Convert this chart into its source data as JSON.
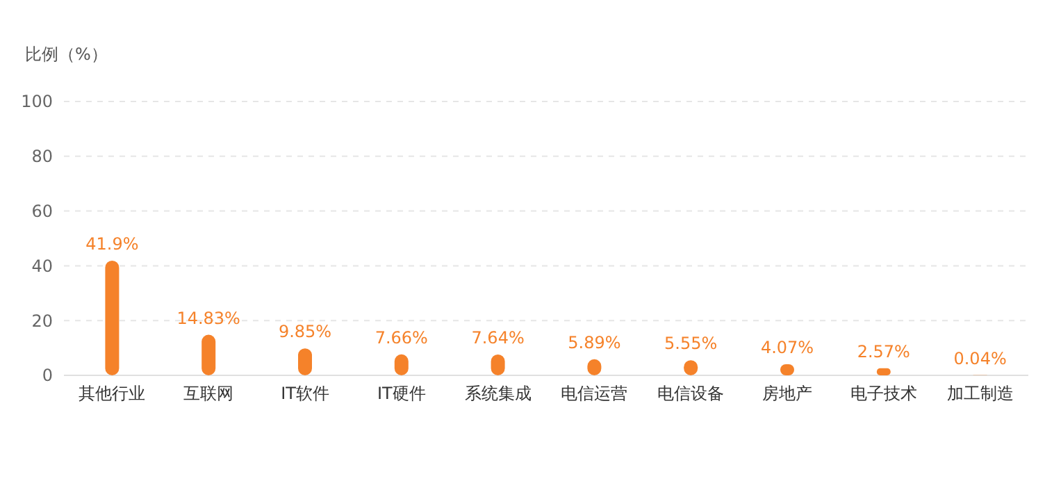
{
  "chart_data": {
    "type": "bar",
    "ylabel": "比例（%）",
    "categories": [
      "其他行业",
      "互联网",
      "IT软件",
      "IT硬件",
      "系统集成",
      "电信运营",
      "电信设备",
      "房地产",
      "电子技术",
      "加工制造"
    ],
    "values": [
      41.9,
      14.83,
      9.85,
      7.66,
      7.64,
      5.89,
      5.55,
      4.07,
      2.57,
      0.04
    ],
    "value_labels": [
      "41.9%",
      "14.83%",
      "9.85%",
      "7.66%",
      "7.64%",
      "5.89%",
      "5.55%",
      "4.07%",
      "2.57%",
      "0.04%"
    ],
    "color": "#f5822a",
    "ylim": [
      0,
      100
    ],
    "yticks": [
      0,
      20,
      40,
      60,
      80,
      100
    ],
    "grid": "y"
  }
}
